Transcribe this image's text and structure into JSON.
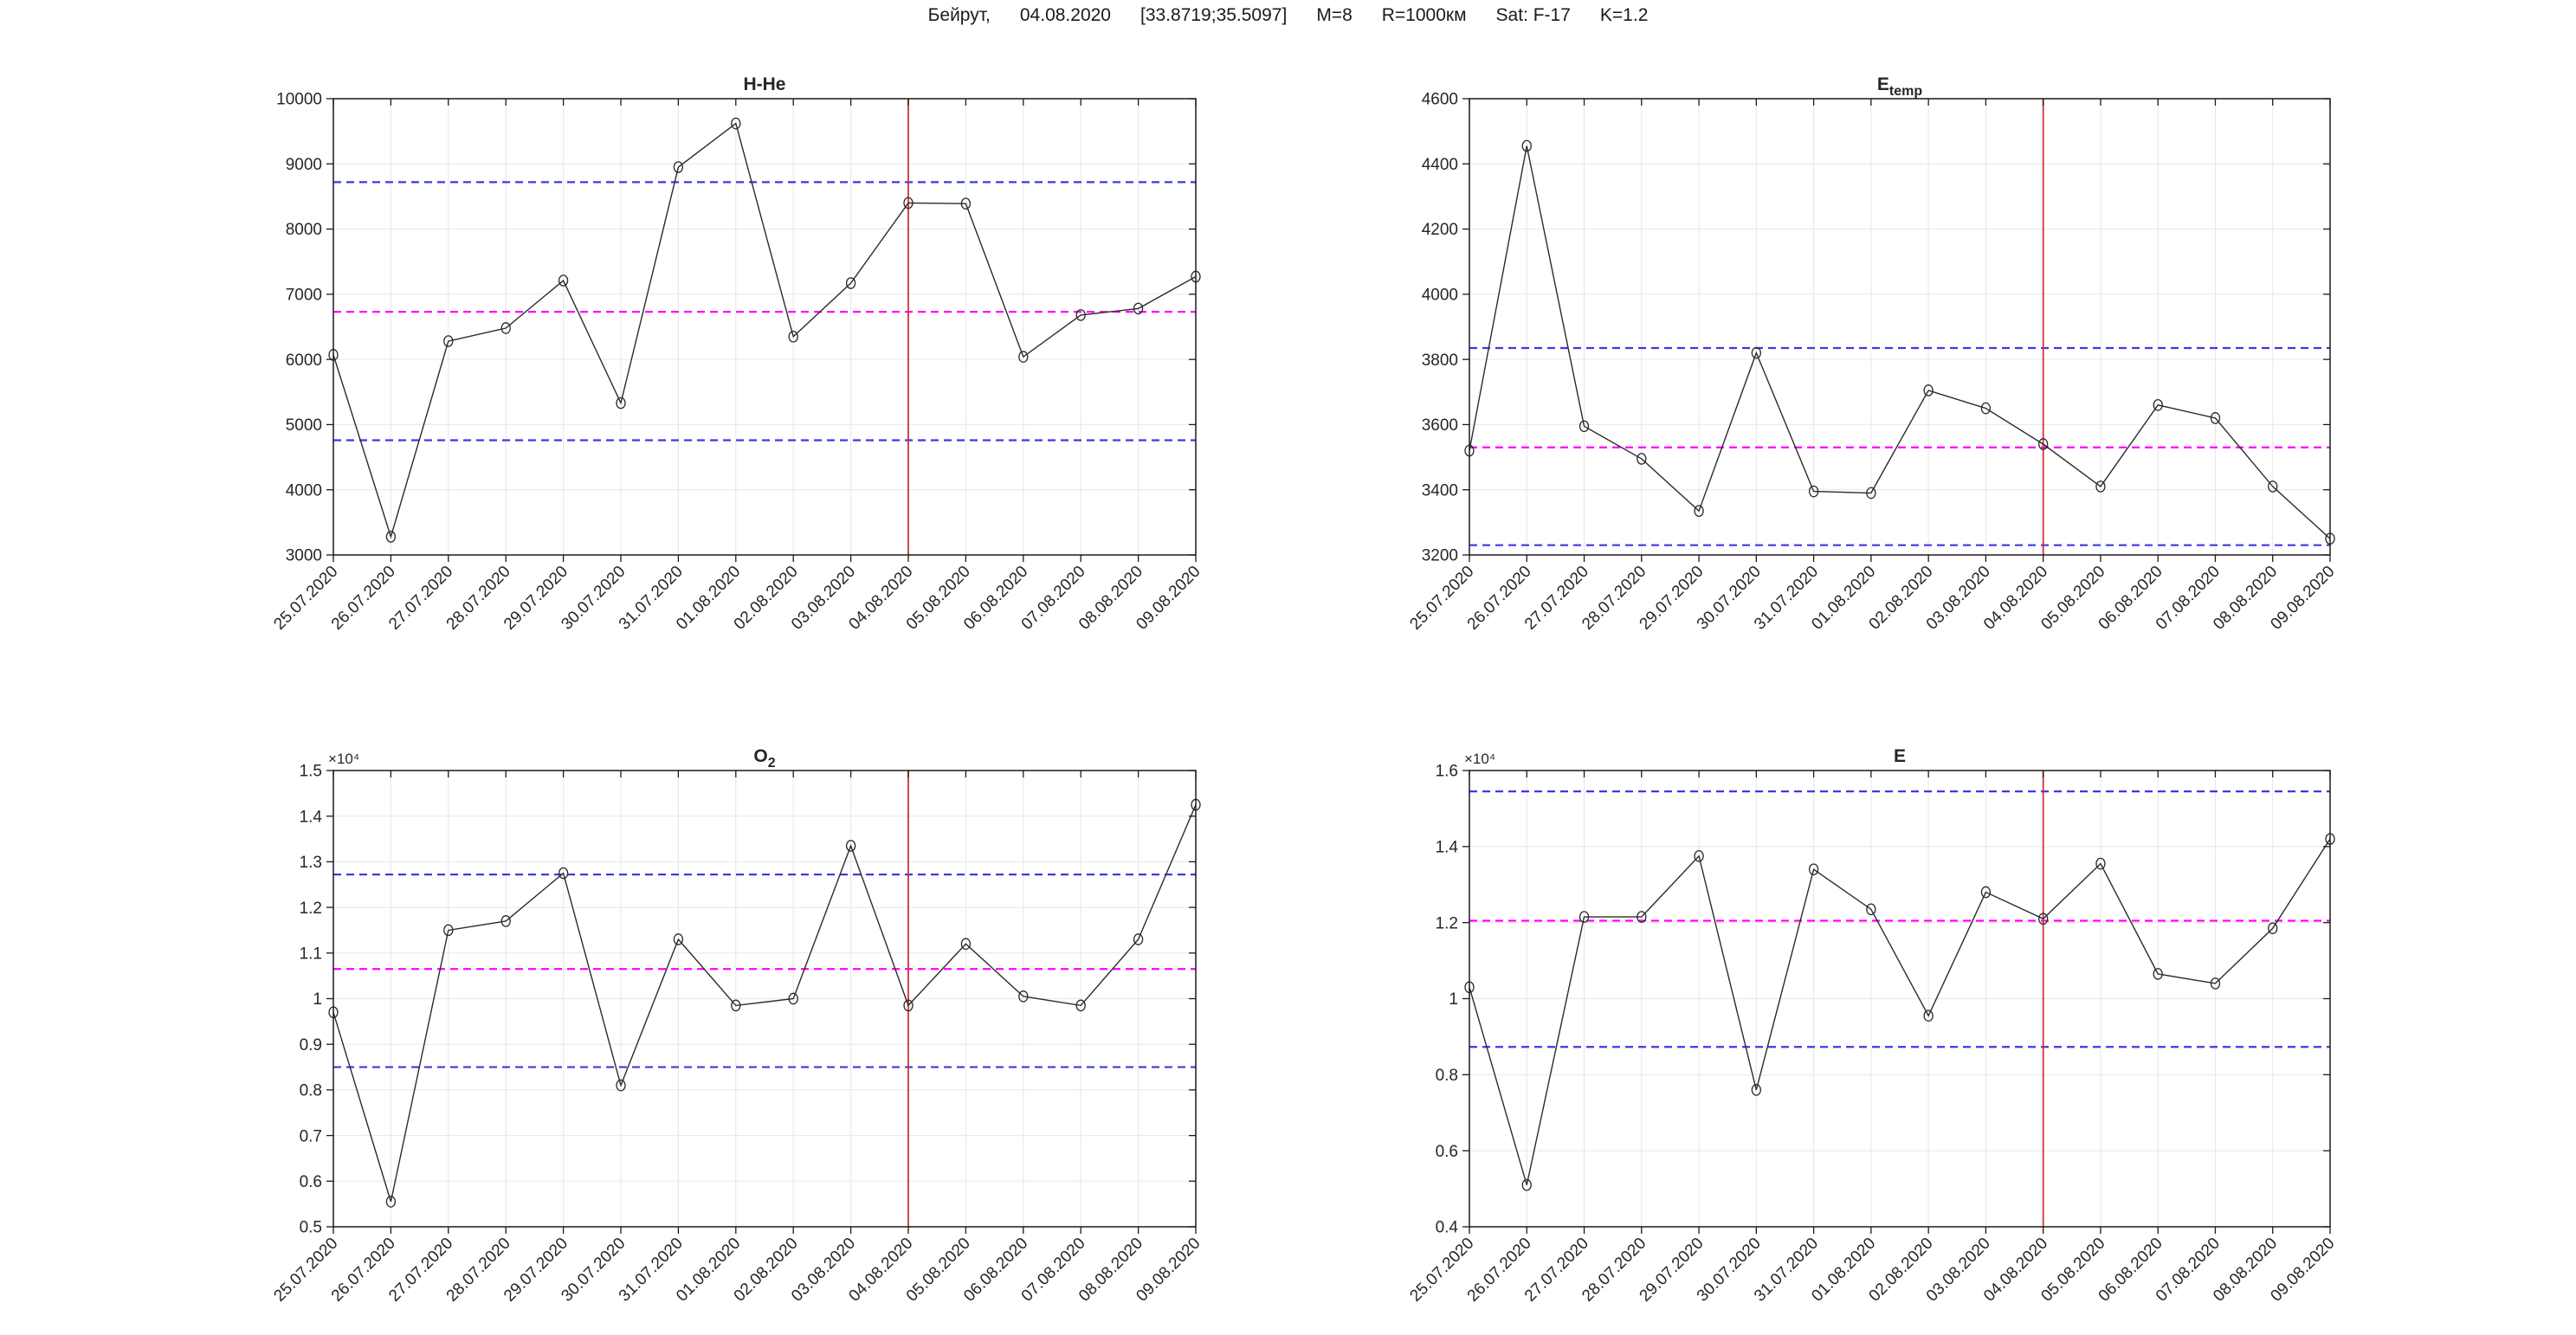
{
  "header": {
    "parts": [
      "Бейрут,",
      "04.08.2020",
      "[33.8719;35.5097]",
      "M=8",
      "R=1000км",
      "Sat: F-17",
      "K=1.2"
    ]
  },
  "colors": {
    "line": "#2b2b2b",
    "marker": "#2b2b2b",
    "bound": "#3a3ae6",
    "mean": "#ff00ff",
    "event": "#cc3333",
    "grid": "#e7e7e7",
    "axis": "#1a1a1a",
    "text": "#262626"
  },
  "event_date": "04.08.2020",
  "chart_data": [
    {
      "type": "line",
      "title": {
        "text": "H-He",
        "sub": ""
      },
      "exponent": "",
      "categories": [
        "25.07.2020",
        "26.07.2020",
        "27.07.2020",
        "28.07.2020",
        "29.07.2020",
        "30.07.2020",
        "31.07.2020",
        "01.08.2020",
        "02.08.2020",
        "03.08.2020",
        "04.08.2020",
        "05.08.2020",
        "06.08.2020",
        "07.08.2020",
        "08.08.2020",
        "09.08.2020"
      ],
      "values": [
        6070,
        3280,
        6280,
        6480,
        7210,
        5330,
        8950,
        9620,
        6350,
        7170,
        8400,
        8390,
        6040,
        6680,
        6780,
        7270
      ],
      "ylim": [
        3000,
        10000
      ],
      "yticks": [
        3000,
        4000,
        5000,
        6000,
        7000,
        8000,
        9000,
        10000
      ],
      "thresholds": {
        "upper": 8720,
        "mean": 6730,
        "lower": 4760
      },
      "event_line_x": "04.08.2020",
      "grid": true,
      "legend": "none",
      "marker": "open-circle"
    },
    {
      "type": "line",
      "title": {
        "text": "E",
        "sub": "temp"
      },
      "exponent": "",
      "categories": [
        "25.07.2020",
        "26.07.2020",
        "27.07.2020",
        "28.07.2020",
        "29.07.2020",
        "30.07.2020",
        "31.07.2020",
        "01.08.2020",
        "02.08.2020",
        "03.08.2020",
        "04.08.2020",
        "05.08.2020",
        "06.08.2020",
        "07.08.2020",
        "08.08.2020",
        "09.08.2020"
      ],
      "values": [
        3520,
        4455,
        3595,
        3495,
        3335,
        3820,
        3395,
        3390,
        3705,
        3650,
        3540,
        3410,
        3660,
        3620,
        3410,
        3250
      ],
      "ylim": [
        3200,
        4600
      ],
      "yticks": [
        3200,
        3400,
        3600,
        3800,
        4000,
        4200,
        4400,
        4600
      ],
      "thresholds": {
        "upper": 3835,
        "mean": 3530,
        "lower": 3230
      },
      "event_line_x": "04.08.2020",
      "grid": true,
      "legend": "none",
      "marker": "open-circle"
    },
    {
      "type": "line",
      "title": {
        "text": "O",
        "sub": "2"
      },
      "exponent": "×10⁴",
      "categories": [
        "25.07.2020",
        "26.07.2020",
        "27.07.2020",
        "28.07.2020",
        "29.07.2020",
        "30.07.2020",
        "31.07.2020",
        "01.08.2020",
        "02.08.2020",
        "03.08.2020",
        "04.08.2020",
        "05.08.2020",
        "06.08.2020",
        "07.08.2020",
        "08.08.2020",
        "09.08.2020"
      ],
      "values": [
        0.97,
        0.555,
        1.15,
        1.17,
        1.275,
        0.81,
        1.13,
        0.985,
        1.0,
        1.335,
        0.985,
        1.12,
        1.005,
        0.985,
        1.13,
        1.425
      ],
      "ylim": [
        0.5,
        1.5
      ],
      "yticks": [
        0.5,
        0.6,
        0.7,
        0.8,
        0.9,
        1,
        1.1,
        1.2,
        1.3,
        1.4,
        1.5
      ],
      "thresholds": {
        "upper": 1.272,
        "mean": 1.065,
        "lower": 0.85
      },
      "event_line_x": "04.08.2020",
      "grid": true,
      "legend": "none",
      "marker": "open-circle"
    },
    {
      "type": "line",
      "title": {
        "text": "E",
        "sub": ""
      },
      "exponent": "×10⁴",
      "categories": [
        "25.07.2020",
        "26.07.2020",
        "27.07.2020",
        "28.07.2020",
        "29.07.2020",
        "30.07.2020",
        "31.07.2020",
        "01.08.2020",
        "02.08.2020",
        "03.08.2020",
        "04.08.2020",
        "05.08.2020",
        "06.08.2020",
        "07.08.2020",
        "08.08.2020",
        "09.08.2020"
      ],
      "values": [
        1.03,
        0.51,
        1.215,
        1.215,
        1.375,
        0.76,
        1.34,
        1.235,
        0.955,
        1.28,
        1.21,
        1.355,
        1.065,
        1.04,
        1.185,
        1.42
      ],
      "ylim": [
        0.4,
        1.6
      ],
      "yticks": [
        0.4,
        0.6,
        0.8,
        1,
        1.2,
        1.4,
        1.6
      ],
      "thresholds": {
        "upper": 1.545,
        "mean": 1.205,
        "lower": 0.873
      },
      "event_line_x": "04.08.2020",
      "grid": true,
      "legend": "none",
      "marker": "open-circle"
    }
  ]
}
